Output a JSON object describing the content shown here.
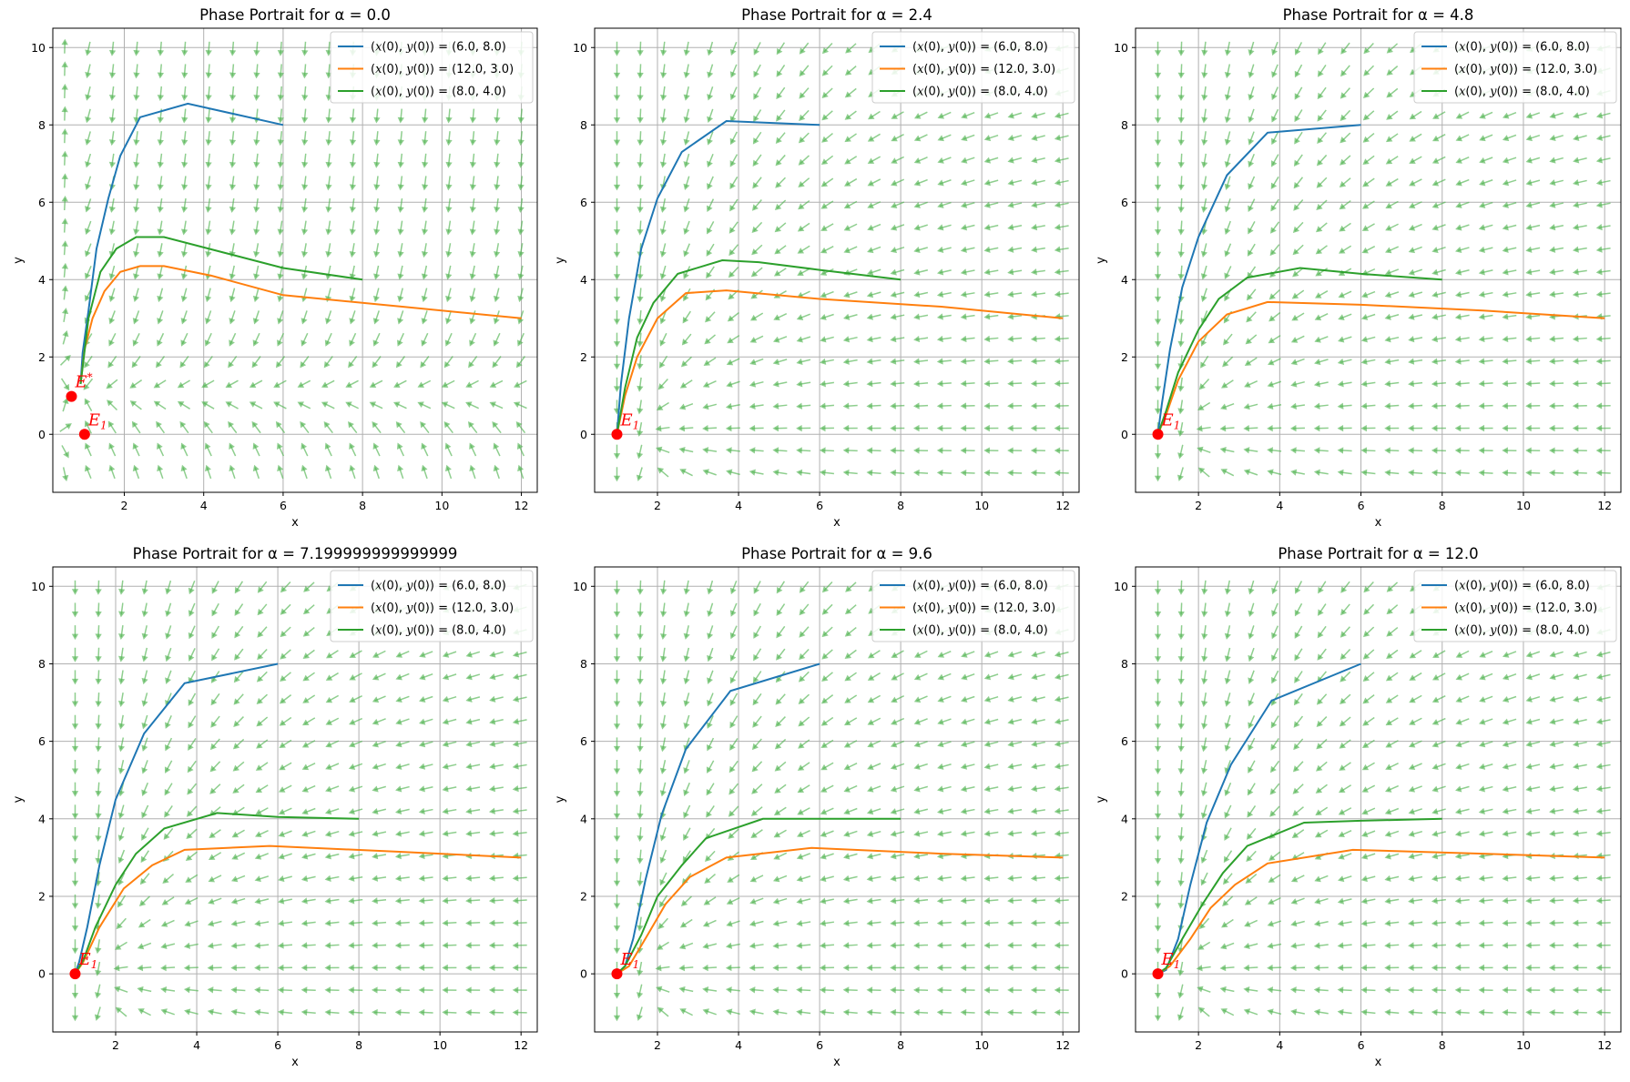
{
  "figure": {
    "background": "#ffffff"
  },
  "colors": {
    "series": [
      "#1f77b4",
      "#ff7f0e",
      "#2ca02c"
    ],
    "arrows": "#53b553",
    "equilibrium": "#ff0000",
    "grid": "#b0b0b0"
  },
  "chart_data": [
    {
      "type": "line",
      "title": "Phase Portrait for α = 0.0",
      "xlabel": "x",
      "ylabel": "y",
      "xlim": [
        0.2,
        12.4
      ],
      "ylim": [
        -1.5,
        10.5
      ],
      "xticks": [
        2,
        4,
        6,
        8,
        10,
        12
      ],
      "yticks": [
        0,
        2,
        4,
        6,
        8,
        10
      ],
      "grid": true,
      "legend": "top-right",
      "series": [
        {
          "name": "(x(0), y(0)) = (6.0, 8.0)",
          "x": [
            6.0,
            3.6,
            2.4,
            1.9,
            1.6,
            1.3,
            1.1,
            0.95,
            0.9
          ],
          "y": [
            8.0,
            8.55,
            8.2,
            7.2,
            6.1,
            4.8,
            3.2,
            2.1,
            1.3
          ]
        },
        {
          "name": "(x(0), y(0)) = (12.0, 3.0)",
          "x": [
            12.0,
            9.0,
            6.0,
            4.2,
            3.0,
            2.4,
            1.9,
            1.5,
            1.2,
            1.0,
            0.9
          ],
          "y": [
            3.0,
            3.3,
            3.6,
            4.1,
            4.35,
            4.35,
            4.2,
            3.7,
            3.0,
            2.2,
            1.3
          ]
        },
        {
          "name": "(x(0), y(0)) = (8.0, 4.0)",
          "x": [
            8.0,
            6.0,
            4.5,
            3.0,
            2.3,
            1.8,
            1.4,
            1.1,
            0.9
          ],
          "y": [
            4.0,
            4.3,
            4.7,
            5.1,
            5.1,
            4.8,
            4.2,
            3.0,
            1.3
          ]
        }
      ],
      "equilibria": [
        {
          "label": "E*",
          "x": 0.67,
          "y": 0.98
        },
        {
          "label": "E1",
          "x": 1.0,
          "y": 0.0
        }
      ]
    },
    {
      "type": "line",
      "title": "Phase Portrait for α = 2.4",
      "xlabel": "x",
      "ylabel": "y",
      "xlim": [
        0.45,
        12.4
      ],
      "ylim": [
        -1.5,
        10.5
      ],
      "xticks": [
        2,
        4,
        6,
        8,
        10,
        12
      ],
      "yticks": [
        0,
        2,
        4,
        6,
        8,
        10
      ],
      "grid": true,
      "legend": "top-right",
      "series": [
        {
          "name": "(x(0), y(0)) = (6.0, 8.0)",
          "x": [
            6.0,
            3.7,
            2.6,
            2.0,
            1.6,
            1.3,
            1.1,
            1.0
          ],
          "y": [
            8.0,
            8.1,
            7.3,
            6.1,
            4.8,
            3.0,
            1.3,
            0.0
          ]
        },
        {
          "name": "(x(0), y(0)) = (12.0, 3.0)",
          "x": [
            12.0,
            9.0,
            6.0,
            3.7,
            2.7,
            2.0,
            1.5,
            1.2,
            1.0
          ],
          "y": [
            3.0,
            3.3,
            3.5,
            3.72,
            3.65,
            3.0,
            2.0,
            1.0,
            0.0
          ]
        },
        {
          "name": "(x(0), y(0)) = (8.0, 4.0)",
          "x": [
            8.0,
            6.0,
            4.5,
            3.6,
            2.5,
            1.9,
            1.5,
            1.2,
            1.0
          ],
          "y": [
            4.0,
            4.25,
            4.45,
            4.5,
            4.15,
            3.4,
            2.5,
            1.2,
            0.0
          ]
        }
      ],
      "equilibria": [
        {
          "label": "E1",
          "x": 1.0,
          "y": 0.0
        }
      ]
    },
    {
      "type": "line",
      "title": "Phase Portrait for α = 4.8",
      "xlabel": "x",
      "ylabel": "y",
      "xlim": [
        0.45,
        12.4
      ],
      "ylim": [
        -1.5,
        10.5
      ],
      "xticks": [
        2,
        4,
        6,
        8,
        10,
        12
      ],
      "yticks": [
        0,
        2,
        4,
        6,
        8,
        10
      ],
      "grid": true,
      "legend": "top-right",
      "series": [
        {
          "name": "(x(0), y(0)) = (6.0, 8.0)",
          "x": [
            6.0,
            3.7,
            2.7,
            2.0,
            1.6,
            1.3,
            1.1,
            1.0
          ],
          "y": [
            8.0,
            7.8,
            6.7,
            5.1,
            3.8,
            2.2,
            0.8,
            0.0
          ]
        },
        {
          "name": "(x(0), y(0)) = (12.0, 3.0)",
          "x": [
            12.0,
            9.0,
            6.0,
            3.7,
            2.7,
            2.0,
            1.5,
            1.2,
            1.0
          ],
          "y": [
            3.0,
            3.2,
            3.35,
            3.42,
            3.1,
            2.4,
            1.4,
            0.5,
            0.0
          ]
        },
        {
          "name": "(x(0), y(0)) = (8.0, 4.0)",
          "x": [
            8.0,
            6.0,
            4.5,
            3.2,
            2.5,
            2.0,
            1.5,
            1.2,
            1.0
          ],
          "y": [
            4.0,
            4.15,
            4.3,
            4.05,
            3.5,
            2.7,
            1.6,
            0.6,
            0.0
          ]
        }
      ],
      "equilibria": [
        {
          "label": "E1",
          "x": 1.0,
          "y": 0.0
        }
      ]
    },
    {
      "type": "line",
      "title": "Phase Portrait for α = 7.199999999999999",
      "xlabel": "x",
      "ylabel": "y",
      "xlim": [
        0.45,
        12.4
      ],
      "ylim": [
        -1.5,
        10.5
      ],
      "xticks": [
        2,
        4,
        6,
        8,
        10,
        12
      ],
      "yticks": [
        0,
        2,
        4,
        6,
        8,
        10
      ],
      "grid": true,
      "legend": "top-right",
      "series": [
        {
          "name": "(x(0), y(0)) = (6.0, 8.0)",
          "x": [
            6.0,
            3.7,
            2.7,
            2.0,
            1.6,
            1.3,
            1.1,
            1.0
          ],
          "y": [
            8.0,
            7.5,
            6.2,
            4.5,
            2.8,
            1.2,
            0.3,
            0.0
          ]
        },
        {
          "name": "(x(0), y(0)) = (12.0, 3.0)",
          "x": [
            12.0,
            9.0,
            5.8,
            3.7,
            2.9,
            2.2,
            1.6,
            1.2,
            1.0
          ],
          "y": [
            3.0,
            3.15,
            3.3,
            3.2,
            2.8,
            2.2,
            1.2,
            0.3,
            0.0
          ]
        },
        {
          "name": "(x(0), y(0)) = (8.0, 4.0)",
          "x": [
            8.0,
            6.0,
            4.5,
            3.2,
            2.5,
            2.0,
            1.5,
            1.2,
            1.0
          ],
          "y": [
            4.0,
            4.05,
            4.15,
            3.75,
            3.1,
            2.3,
            1.2,
            0.35,
            0.0
          ]
        }
      ],
      "equilibria": [
        {
          "label": "E1",
          "x": 1.0,
          "y": 0.0
        }
      ]
    },
    {
      "type": "line",
      "title": "Phase Portrait for α = 9.6",
      "xlabel": "x",
      "ylabel": "y",
      "xlim": [
        0.45,
        12.4
      ],
      "ylim": [
        -1.5,
        10.5
      ],
      "xticks": [
        2,
        4,
        6,
        8,
        10,
        12
      ],
      "yticks": [
        0,
        2,
        4,
        6,
        8,
        10
      ],
      "grid": true,
      "legend": "top-right",
      "series": [
        {
          "name": "(x(0), y(0)) = (6.0, 8.0)",
          "x": [
            6.0,
            3.8,
            2.7,
            2.1,
            1.7,
            1.4,
            1.2,
            1.0
          ],
          "y": [
            8.0,
            7.3,
            5.8,
            4.1,
            2.4,
            0.9,
            0.2,
            0.0
          ]
        },
        {
          "name": "(x(0), y(0)) = (12.0, 3.0)",
          "x": [
            12.0,
            9.0,
            5.8,
            3.7,
            2.8,
            2.2,
            1.7,
            1.3,
            1.0
          ],
          "y": [
            3.0,
            3.1,
            3.25,
            3.0,
            2.5,
            1.8,
            0.9,
            0.2,
            0.0
          ]
        },
        {
          "name": "(x(0), y(0)) = (8.0, 4.0)",
          "x": [
            8.0,
            6.0,
            4.6,
            3.2,
            2.6,
            2.0,
            1.6,
            1.2,
            1.0
          ],
          "y": [
            4.0,
            4.0,
            4.0,
            3.5,
            2.8,
            2.0,
            1.0,
            0.2,
            0.0
          ]
        }
      ],
      "equilibria": [
        {
          "label": "E1",
          "x": 1.0,
          "y": 0.0
        }
      ]
    },
    {
      "type": "line",
      "title": "Phase Portrait for α = 12.0",
      "xlabel": "x",
      "ylabel": "y",
      "xlim": [
        0.45,
        12.4
      ],
      "ylim": [
        -1.5,
        10.5
      ],
      "xticks": [
        2,
        4,
        6,
        8,
        10,
        12
      ],
      "yticks": [
        0,
        2,
        4,
        6,
        8,
        10
      ],
      "grid": true,
      "legend": "top-right",
      "series": [
        {
          "name": "(x(0), y(0)) = (6.0, 8.0)",
          "x": [
            6.0,
            3.8,
            2.8,
            2.2,
            1.8,
            1.5,
            1.2,
            1.0
          ],
          "y": [
            8.0,
            7.05,
            5.4,
            3.9,
            2.3,
            0.9,
            0.1,
            0.0
          ]
        },
        {
          "name": "(x(0), y(0)) = (12.0, 3.0)",
          "x": [
            12.0,
            9.0,
            5.8,
            3.7,
            2.9,
            2.3,
            1.8,
            1.3,
            1.0
          ],
          "y": [
            3.0,
            3.1,
            3.2,
            2.85,
            2.3,
            1.7,
            0.9,
            0.2,
            0.0
          ]
        },
        {
          "name": "(x(0), y(0)) = (8.0, 4.0)",
          "x": [
            8.0,
            6.0,
            4.6,
            3.2,
            2.6,
            2.1,
            1.6,
            1.2,
            1.0
          ],
          "y": [
            4.0,
            3.95,
            3.9,
            3.3,
            2.6,
            1.8,
            0.9,
            0.15,
            0.0
          ]
        }
      ],
      "equilibria": [
        {
          "label": "E1",
          "x": 1.0,
          "y": 0.0
        }
      ]
    }
  ]
}
